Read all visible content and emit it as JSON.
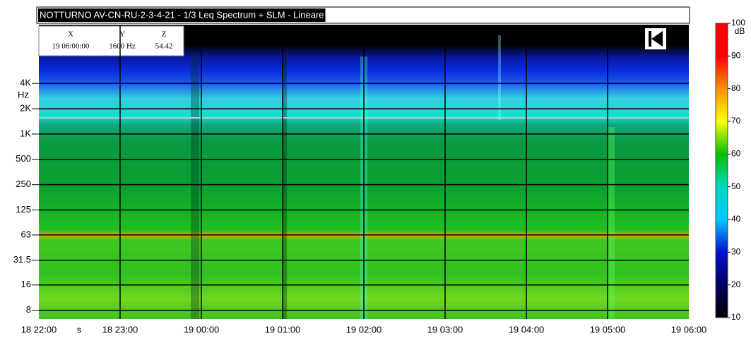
{
  "chart_data": {
    "type": "spectrogram",
    "title": "NOTTURNO AV-CN-RU-2-3-4-21 - 1/3 Leq Spectrum + SLM - Lineare",
    "cursor": {
      "labels": [
        "X",
        "Y",
        "Z"
      ],
      "values": [
        "19 06:00:00",
        "1600 Hz",
        "54.42"
      ]
    },
    "x_label": "s",
    "y_label": "Hz",
    "xticks": [
      "18 22:00",
      "18 23:00",
      "19 00:00",
      "19 01:00",
      "19 02:00",
      "19 03:00",
      "19 04:00",
      "19 05:00",
      "19 06:00"
    ],
    "ylog": true,
    "ylim": [
      6.3,
      20000
    ],
    "yticks": [
      {
        "value": 4000,
        "label": "4K"
      },
      {
        "value": 2000,
        "label": "2K"
      },
      {
        "value": 1000,
        "label": "1K"
      },
      500,
      250,
      125,
      63,
      31.5,
      16,
      8
    ],
    "grid": true,
    "colorbar": {
      "label": "dB",
      "zlim": [
        10,
        100
      ],
      "zticks": [
        10,
        20,
        30,
        40,
        50,
        60,
        70,
        80,
        90,
        100
      ],
      "colors": [
        "#000000",
        "#000060",
        "#0010d0",
        "#00c8ff",
        "#00d8c0",
        "#00c000",
        "#ffff00",
        "#ff9000",
        "#ff0000",
        "#ff0000"
      ]
    }
  }
}
